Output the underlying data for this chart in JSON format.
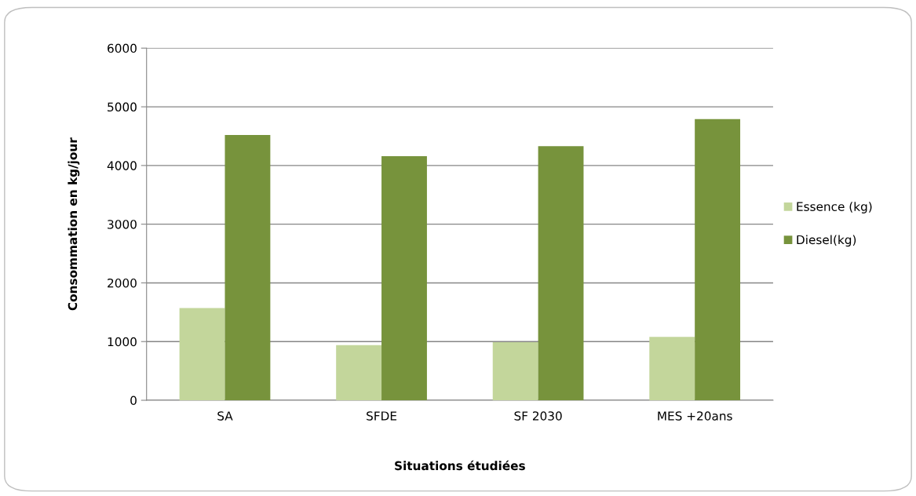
{
  "chart_data": {
    "type": "bar",
    "xlabel": "Situations étudiées",
    "ylabel": "Consommation en kg/jour",
    "categories": [
      "SA",
      "SFDE",
      "SF 2030",
      "MES +20ans"
    ],
    "series": [
      {
        "name": "Essence (kg)",
        "color": "#c3d69b",
        "values": [
          1570,
          940,
          990,
          1080
        ]
      },
      {
        "name": "Diesel(kg)",
        "color": "#77933c",
        "values": [
          4520,
          4160,
          4330,
          4790
        ]
      }
    ],
    "ylim": [
      0,
      6000
    ],
    "yticks": [
      0,
      1000,
      2000,
      3000,
      4000,
      5000,
      6000
    ],
    "grid": "y",
    "legend": "right"
  }
}
